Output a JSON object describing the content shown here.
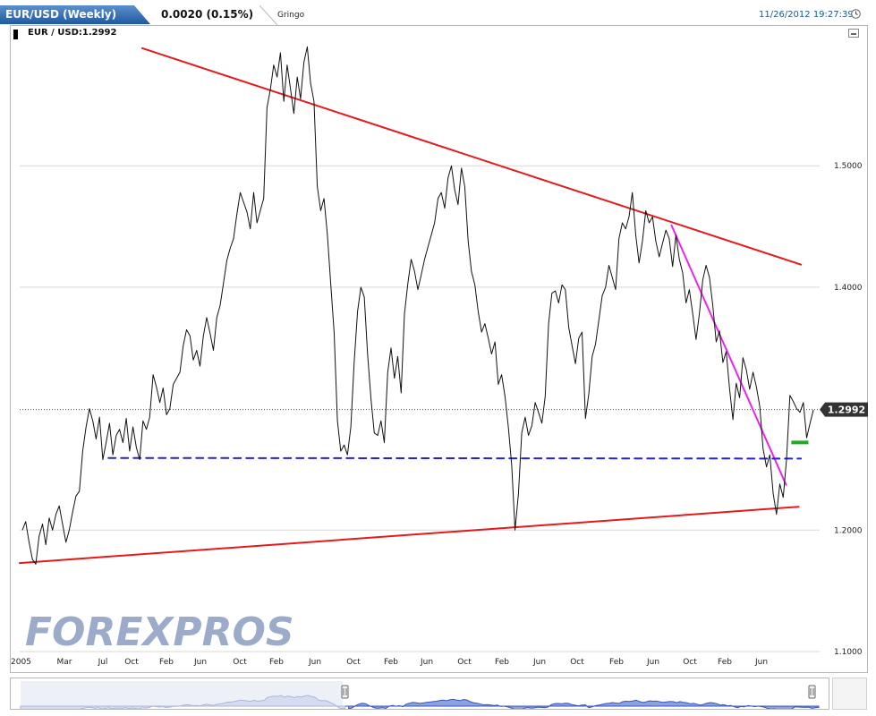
{
  "header": {
    "symbol": "EUR/USD (Weekly)",
    "change": "0.0020 (0.15%)",
    "user": "Gringo",
    "datetime": "11/26/2012 19:27:39",
    "clock_icon": "clock-icon",
    "tab_color": "#2a6ab0"
  },
  "legend": {
    "pair": "EUR / USD:1.2992"
  },
  "watermark": "FOREXPROS",
  "chart_data": {
    "type": "line",
    "title": "",
    "xlabel": "",
    "ylabel": "",
    "ylim": [
      1.1,
      1.61
    ],
    "x_ticks": [
      "2005",
      "Mar",
      "Jul",
      "Oct",
      "Feb",
      "Jun",
      "Oct",
      "Feb",
      "Jun",
      "Oct",
      "Feb",
      "Jun",
      "Oct",
      "Feb",
      "Jun",
      "Oct",
      "Feb",
      "Jun",
      "Oct",
      "Feb",
      "Jun"
    ],
    "y_ticks": [
      "1.1000",
      "1.2000",
      "1.4000",
      "1.5000"
    ],
    "y_tick_values": [
      1.1,
      1.2,
      1.4,
      1.5
    ],
    "current_value": "1.2992",
    "current_value_num": 1.2992,
    "grid": true,
    "series": [
      {
        "values": [
          1.2,
          1.207,
          1.19,
          1.176,
          1.172,
          1.195,
          1.205,
          1.188,
          1.21,
          1.2,
          1.213,
          1.22,
          1.205,
          1.19,
          1.2,
          1.215,
          1.228,
          1.232,
          1.265,
          1.285,
          1.3,
          1.29,
          1.275,
          1.293,
          1.258,
          1.272,
          1.288,
          1.262,
          1.278,
          1.283,
          1.272,
          1.292,
          1.265,
          1.285,
          1.268,
          1.258,
          1.29,
          1.283,
          1.293,
          1.328,
          1.318,
          1.305,
          1.317,
          1.295,
          1.3,
          1.32,
          1.325,
          1.33,
          1.352,
          1.365,
          1.36,
          1.34,
          1.348,
          1.335,
          1.36,
          1.375,
          1.362,
          1.348,
          1.375,
          1.385,
          1.403,
          1.422,
          1.432,
          1.44,
          1.46,
          1.478,
          1.47,
          1.462,
          1.448,
          1.478,
          1.453,
          1.463,
          1.473,
          1.548,
          1.563,
          1.583,
          1.573,
          1.593,
          1.553,
          1.583,
          1.563,
          1.543,
          1.573,
          1.555,
          1.585,
          1.598,
          1.568,
          1.553,
          1.483,
          1.463,
          1.473,
          1.443,
          1.403,
          1.363,
          1.29,
          1.265,
          1.27,
          1.262,
          1.285,
          1.338,
          1.38,
          1.4,
          1.392,
          1.345,
          1.308,
          1.28,
          1.278,
          1.29,
          1.272,
          1.33,
          1.35,
          1.325,
          1.343,
          1.313,
          1.378,
          1.403,
          1.423,
          1.413,
          1.398,
          1.41,
          1.423,
          1.433,
          1.443,
          1.453,
          1.473,
          1.478,
          1.465,
          1.49,
          1.5,
          1.48,
          1.468,
          1.498,
          1.483,
          1.438,
          1.413,
          1.402,
          1.38,
          1.363,
          1.37,
          1.358,
          1.345,
          1.355,
          1.32,
          1.328,
          1.31,
          1.285,
          1.253,
          1.2,
          1.23,
          1.28,
          1.293,
          1.278,
          1.286,
          1.305,
          1.297,
          1.288,
          1.31,
          1.37,
          1.395,
          1.397,
          1.387,
          1.402,
          1.398,
          1.367,
          1.352,
          1.337,
          1.358,
          1.363,
          1.292,
          1.312,
          1.343,
          1.353,
          1.373,
          1.393,
          1.4,
          1.418,
          1.408,
          1.398,
          1.44,
          1.453,
          1.448,
          1.458,
          1.478,
          1.443,
          1.42,
          1.438,
          1.463,
          1.453,
          1.458,
          1.438,
          1.425,
          1.436,
          1.447,
          1.44,
          1.417,
          1.443,
          1.423,
          1.412,
          1.387,
          1.398,
          1.378,
          1.357,
          1.378,
          1.406,
          1.418,
          1.408,
          1.385,
          1.355,
          1.364,
          1.338,
          1.347,
          1.316,
          1.291,
          1.321,
          1.309,
          1.342,
          1.332,
          1.316,
          1.33,
          1.318,
          1.302,
          1.267,
          1.252,
          1.262,
          1.23,
          1.213,
          1.238,
          1.227,
          1.258,
          1.311,
          1.306,
          1.3,
          1.297,
          1.305,
          1.276,
          1.288,
          1.299
        ]
      }
    ],
    "annotations": [
      {
        "name": "upper-resistance-line",
        "color": "#e41a1c",
        "points": [
          [
            0.1545,
            1.5968
          ],
          [
            0.9855,
            1.4186
          ]
        ]
      },
      {
        "name": "lower-support-line",
        "color": "#e41a1c",
        "points": [
          [
            0.0,
            1.1729
          ],
          [
            0.9826,
            1.2192
          ]
        ]
      },
      {
        "name": "recent-downtrend-line",
        "color": "#ee22ee",
        "points": [
          [
            0.8222,
            1.4509
          ],
          [
            0.9667,
            1.2373
          ]
        ]
      },
      {
        "name": "horizontal-support-dashed",
        "color": "#2222dd",
        "points": [
          [
            0.112,
            1.2594
          ],
          [
            0.9855,
            1.2589
          ]
        ]
      },
      {
        "name": "green-marker",
        "color": "#22aa22",
        "points": [
          [
            0.9733,
            1.2722
          ],
          [
            0.9949,
            1.2722
          ]
        ]
      }
    ]
  }
}
